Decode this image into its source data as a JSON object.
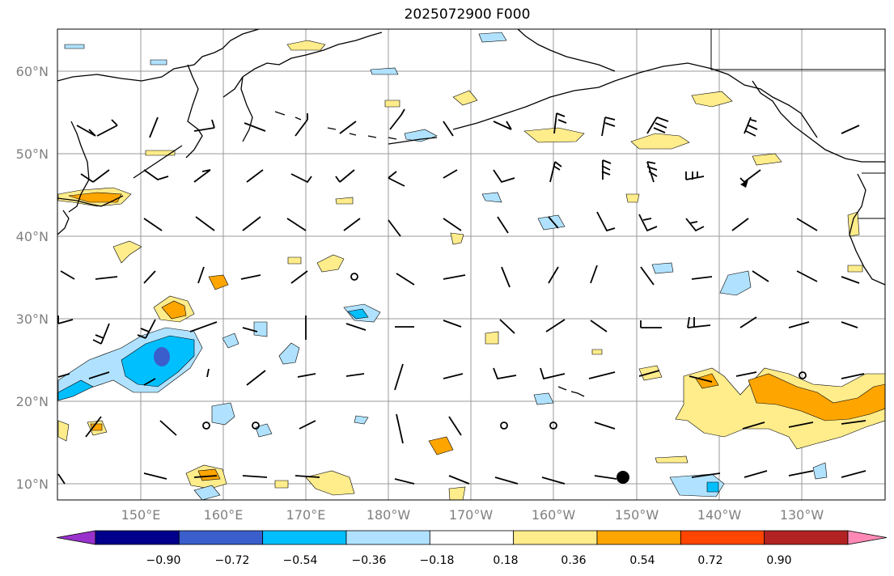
{
  "title": "2025072900 F000",
  "map": {
    "lat_labels": [
      "10°N",
      "20°N",
      "30°N",
      "40°N",
      "50°N",
      "60°N"
    ],
    "lon_labels": [
      "150°E",
      "160°E",
      "170°E",
      "180°W",
      "170°W",
      "160°W",
      "150°W",
      "140°W",
      "130°W"
    ]
  },
  "colorbar": {
    "labels": [
      "−0.90",
      "−0.72",
      "−0.54",
      "−0.36",
      "−0.18",
      "0.18",
      "0.36",
      "0.54",
      "0.72",
      "0.90"
    ],
    "colors": [
      "#9932cc",
      "#00008b",
      "#3a5fcd",
      "#00bfff",
      "#b0e2ff",
      "#ffffff",
      "#ffec8b",
      "#ffa500",
      "#ff4500",
      "#b22222",
      "#ff89b4"
    ]
  }
}
